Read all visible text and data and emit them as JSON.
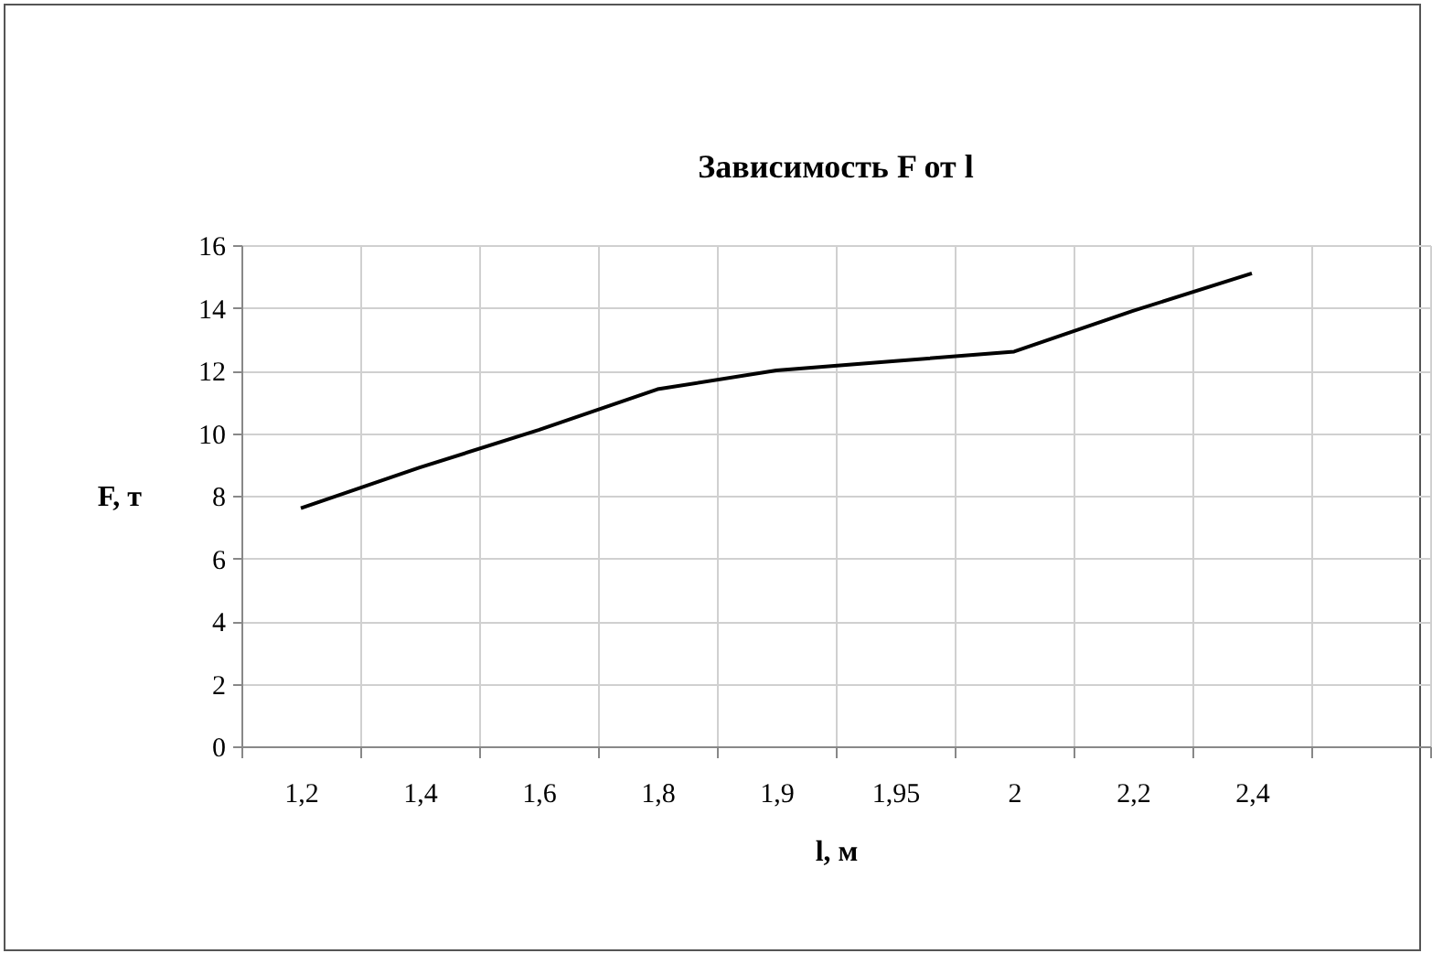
{
  "chart_data": {
    "type": "line",
    "title": "Зависимость F от l",
    "xlabel": "l, м",
    "ylabel": "F, т",
    "categories": [
      "1,2",
      "1,4",
      "1,6",
      "1,8",
      "1,9",
      "1,95",
      "2",
      "2,2",
      "2,4",
      null
    ],
    "series": [
      {
        "color": "#000000",
        "values": [
          7.6,
          8.9,
          10.1,
          11.4,
          12.0,
          12.3,
          12.6,
          13.9,
          15.1,
          null
        ]
      }
    ],
    "ylim": [
      0,
      16
    ],
    "yticks": [
      0,
      2,
      4,
      6,
      8,
      10,
      12,
      14,
      16
    ],
    "grid": true,
    "marker": "none",
    "line_style": "solid"
  }
}
